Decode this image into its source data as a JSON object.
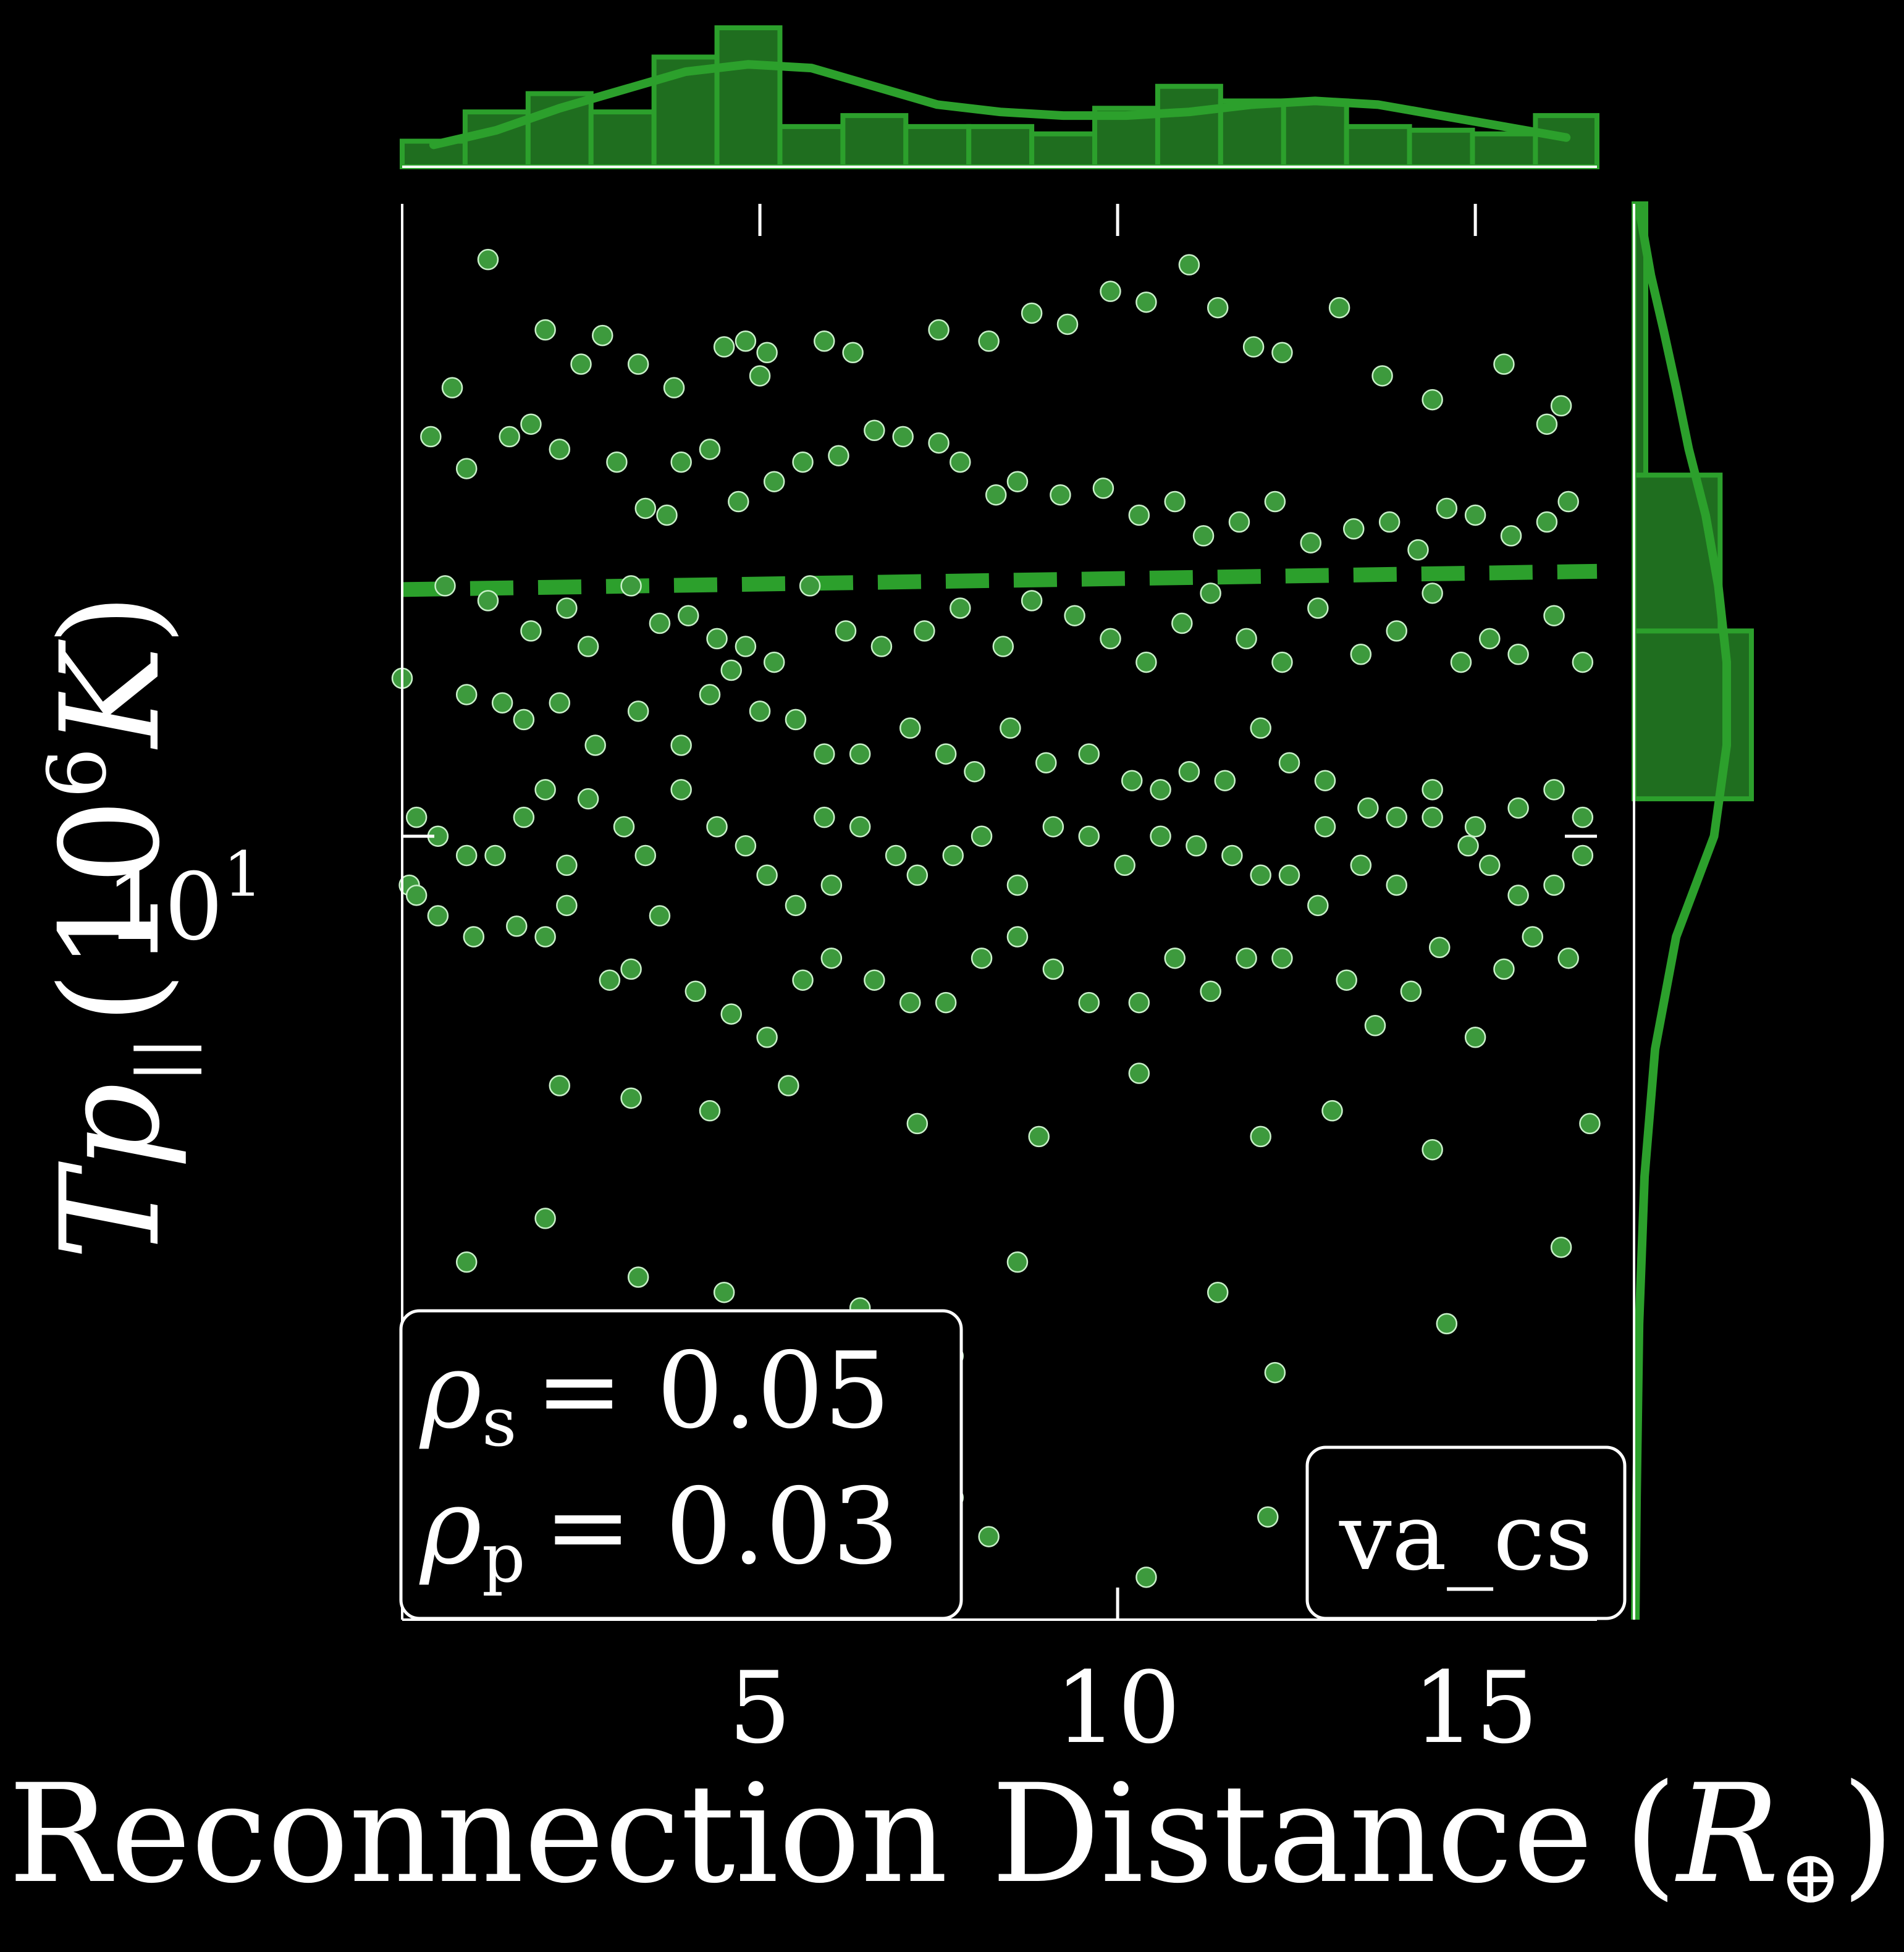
{
  "theme": {
    "background": "#000000",
    "accent": "#2ca02c",
    "bar_fill": "#1f6e1f",
    "point_fill": "#3d9a3d",
    "point_edge": "#c8f0c8",
    "axis_color": "#ffffff"
  },
  "labels": {
    "xlabel": "Reconnection Distance",
    "xlabel_unit_open": "(",
    "xlabel_unit_sym": "R",
    "xlabel_unit_sub": "⊕",
    "xlabel_unit_close": ")",
    "ylabel_sym": "Tp",
    "ylabel_sub": "||",
    "ylabel_paren_open": "(10",
    "ylabel_exp": "6",
    "ylabel_unit": "K",
    "ylabel_paren_close": ")"
  },
  "stats": {
    "rho_s_sym": "ρ",
    "rho_s_sub": "s",
    "rho_s_eq": "= 0.05",
    "rho_p_sym": "ρ",
    "rho_p_sub": "p",
    "rho_p_eq": "= 0.03",
    "tag": "va_cs"
  },
  "chart_data": {
    "type": "scatter",
    "title": "",
    "xlabel": "Reconnection Distance (R⊕)",
    "ylabel": "Tp|| (10^6 K)",
    "x_scale": "linear",
    "y_scale": "log",
    "xlim": [
      0,
      16.7
    ],
    "ylim": [
      4.4,
      19.4
    ],
    "x_ticks": [
      5,
      10,
      15
    ],
    "x_tick_labels": [
      "5",
      "10",
      "15"
    ],
    "y_ticks": [
      10
    ],
    "y_tick_labels": [
      "10",
      "1"
    ],
    "grid": false,
    "annotation_box_position": "bottom-left",
    "tag_box_position": "bottom-right",
    "regression": {
      "x": [
        0,
        16.7
      ],
      "y": [
        12.95,
        13.2
      ]
    },
    "points": [
      [
        0.7,
        16.0
      ],
      [
        1.2,
        18.3
      ],
      [
        2.0,
        17.0
      ],
      [
        2.5,
        16.4
      ],
      [
        2.8,
        16.9
      ],
      [
        3.3,
        16.4
      ],
      [
        3.8,
        16.0
      ],
      [
        4.5,
        16.7
      ],
      [
        4.8,
        16.8
      ],
      [
        5.0,
        16.2
      ],
      [
        5.1,
        16.6
      ],
      [
        5.9,
        16.8
      ],
      [
        6.3,
        16.6
      ],
      [
        7.5,
        17.0
      ],
      [
        8.2,
        16.8
      ],
      [
        8.8,
        17.3
      ],
      [
        9.3,
        17.1
      ],
      [
        9.9,
        17.7
      ],
      [
        10.4,
        17.5
      ],
      [
        11.0,
        18.2
      ],
      [
        11.4,
        17.4
      ],
      [
        11.9,
        16.7
      ],
      [
        12.3,
        16.6
      ],
      [
        13.1,
        17.4
      ],
      [
        13.7,
        16.2
      ],
      [
        14.4,
        15.8
      ],
      [
        15.4,
        16.4
      ],
      [
        16.0,
        15.4
      ],
      [
        16.2,
        15.7
      ],
      [
        0.4,
        15.2
      ],
      [
        0.9,
        14.7
      ],
      [
        1.5,
        15.2
      ],
      [
        1.8,
        15.4
      ],
      [
        2.2,
        15.0
      ],
      [
        3.0,
        14.8
      ],
      [
        3.4,
        14.1
      ],
      [
        3.7,
        14.0
      ],
      [
        3.9,
        14.8
      ],
      [
        4.3,
        15.0
      ],
      [
        4.7,
        14.2
      ],
      [
        5.2,
        14.5
      ],
      [
        5.6,
        14.8
      ],
      [
        6.1,
        14.9
      ],
      [
        6.6,
        15.3
      ],
      [
        7.0,
        15.2
      ],
      [
        7.5,
        15.1
      ],
      [
        7.8,
        14.8
      ],
      [
        8.3,
        14.3
      ],
      [
        8.6,
        14.5
      ],
      [
        9.2,
        14.3
      ],
      [
        9.8,
        14.4
      ],
      [
        10.3,
        14.0
      ],
      [
        10.8,
        14.2
      ],
      [
        11.2,
        13.7
      ],
      [
        11.7,
        13.9
      ],
      [
        12.2,
        14.2
      ],
      [
        12.7,
        13.6
      ],
      [
        13.3,
        13.8
      ],
      [
        13.8,
        13.9
      ],
      [
        14.2,
        13.5
      ],
      [
        14.6,
        14.1
      ],
      [
        15.0,
        14.0
      ],
      [
        15.5,
        13.7
      ],
      [
        16.0,
        13.9
      ],
      [
        16.3,
        14.2
      ],
      [
        0.6,
        13.0
      ],
      [
        1.2,
        12.8
      ],
      [
        1.8,
        12.4
      ],
      [
        2.3,
        12.7
      ],
      [
        2.6,
        12.2
      ],
      [
        3.2,
        13.0
      ],
      [
        3.6,
        12.5
      ],
      [
        4.0,
        12.6
      ],
      [
        4.4,
        12.3
      ],
      [
        4.8,
        12.2
      ],
      [
        5.2,
        12.0
      ],
      [
        5.7,
        13.0
      ],
      [
        6.2,
        12.4
      ],
      [
        6.7,
        12.2
      ],
      [
        7.3,
        12.4
      ],
      [
        7.8,
        12.7
      ],
      [
        8.4,
        12.2
      ],
      [
        8.8,
        12.8
      ],
      [
        9.4,
        12.6
      ],
      [
        9.9,
        12.3
      ],
      [
        10.4,
        12.0
      ],
      [
        10.9,
        12.5
      ],
      [
        11.3,
        12.9
      ],
      [
        11.8,
        12.3
      ],
      [
        12.3,
        12.0
      ],
      [
        12.8,
        12.7
      ],
      [
        13.4,
        12.1
      ],
      [
        13.9,
        12.4
      ],
      [
        14.4,
        12.9
      ],
      [
        14.8,
        12.0
      ],
      [
        15.2,
        12.3
      ],
      [
        15.6,
        12.1
      ],
      [
        16.1,
        12.6
      ],
      [
        16.5,
        12.0
      ],
      [
        0.0,
        11.8
      ],
      [
        0.9,
        11.6
      ],
      [
        1.4,
        11.5
      ],
      [
        1.7,
        11.3
      ],
      [
        2.2,
        11.5
      ],
      [
        2.7,
        11.0
      ],
      [
        3.3,
        11.4
      ],
      [
        3.9,
        11.0
      ],
      [
        4.3,
        11.6
      ],
      [
        4.6,
        11.9
      ],
      [
        5.0,
        11.4
      ],
      [
        5.5,
        11.3
      ],
      [
        5.9,
        10.9
      ],
      [
        6.4,
        10.9
      ],
      [
        7.1,
        11.2
      ],
      [
        7.6,
        10.9
      ],
      [
        8.0,
        10.7
      ],
      [
        8.5,
        11.2
      ],
      [
        9.0,
        10.8
      ],
      [
        9.6,
        10.9
      ],
      [
        10.2,
        10.6
      ],
      [
        10.6,
        10.5
      ],
      [
        11.0,
        10.7
      ],
      [
        11.5,
        10.6
      ],
      [
        12.0,
        11.2
      ],
      [
        12.4,
        10.8
      ],
      [
        12.9,
        10.6
      ],
      [
        13.5,
        10.3
      ],
      [
        13.9,
        10.2
      ],
      [
        14.4,
        10.5
      ],
      [
        15.0,
        10.1
      ],
      [
        15.6,
        10.3
      ],
      [
        16.1,
        10.5
      ],
      [
        16.5,
        10.2
      ],
      [
        0.2,
        10.2
      ],
      [
        0.5,
        10.0
      ],
      [
        0.9,
        9.8
      ],
      [
        1.3,
        9.8
      ],
      [
        1.7,
        10.2
      ],
      [
        2.0,
        10.5
      ],
      [
        2.3,
        9.7
      ],
      [
        2.6,
        10.4
      ],
      [
        3.1,
        10.1
      ],
      [
        3.4,
        9.8
      ],
      [
        3.9,
        10.5
      ],
      [
        4.4,
        10.1
      ],
      [
        4.8,
        9.9
      ],
      [
        5.1,
        9.6
      ],
      [
        5.5,
        9.3
      ],
      [
        5.9,
        10.2
      ],
      [
        6.0,
        9.5
      ],
      [
        6.4,
        10.1
      ],
      [
        6.9,
        9.8
      ],
      [
        7.2,
        9.6
      ],
      [
        7.7,
        9.8
      ],
      [
        8.1,
        10.0
      ],
      [
        8.6,
        9.5
      ],
      [
        9.1,
        10.1
      ],
      [
        9.6,
        10.0
      ],
      [
        10.1,
        9.7
      ],
      [
        10.6,
        10.0
      ],
      [
        11.1,
        9.9
      ],
      [
        11.6,
        9.8
      ],
      [
        12.0,
        9.6
      ],
      [
        12.4,
        9.6
      ],
      [
        12.9,
        10.1
      ],
      [
        13.4,
        9.7
      ],
      [
        13.9,
        9.5
      ],
      [
        14.4,
        10.2
      ],
      [
        14.9,
        9.9
      ],
      [
        15.2,
        9.7
      ],
      [
        15.6,
        9.4
      ],
      [
        16.1,
        9.5
      ],
      [
        16.5,
        9.8
      ],
      [
        0.1,
        9.5
      ],
      [
        0.2,
        9.4
      ],
      [
        0.5,
        9.2
      ],
      [
        1.0,
        9.0
      ],
      [
        1.6,
        9.1
      ],
      [
        2.0,
        9.0
      ],
      [
        2.3,
        9.3
      ],
      [
        2.9,
        8.6
      ],
      [
        3.2,
        8.7
      ],
      [
        3.6,
        9.2
      ],
      [
        4.1,
        8.5
      ],
      [
        4.6,
        8.3
      ],
      [
        5.1,
        8.1
      ],
      [
        5.6,
        8.6
      ],
      [
        6.0,
        8.8
      ],
      [
        6.6,
        8.6
      ],
      [
        7.1,
        8.4
      ],
      [
        7.6,
        8.4
      ],
      [
        8.1,
        8.8
      ],
      [
        8.6,
        9.0
      ],
      [
        9.1,
        8.7
      ],
      [
        9.6,
        8.4
      ],
      [
        10.3,
        8.4
      ],
      [
        10.8,
        8.8
      ],
      [
        11.3,
        8.5
      ],
      [
        11.8,
        8.8
      ],
      [
        12.3,
        8.8
      ],
      [
        12.8,
        9.3
      ],
      [
        13.2,
        8.6
      ],
      [
        13.6,
        8.2
      ],
      [
        14.1,
        8.5
      ],
      [
        14.5,
        8.9
      ],
      [
        15.0,
        8.1
      ],
      [
        15.4,
        8.7
      ],
      [
        15.8,
        9.0
      ],
      [
        16.3,
        8.8
      ],
      [
        2.2,
        7.7
      ],
      [
        3.2,
        7.6
      ],
      [
        4.3,
        7.5
      ],
      [
        5.4,
        7.7
      ],
      [
        7.2,
        7.4
      ],
      [
        8.9,
        7.3
      ],
      [
        10.3,
        7.8
      ],
      [
        12.0,
        7.3
      ],
      [
        13.0,
        7.5
      ],
      [
        14.4,
        7.2
      ],
      [
        16.6,
        7.4
      ],
      [
        0.9,
        6.4
      ],
      [
        2.0,
        6.7
      ],
      [
        3.3,
        6.3
      ],
      [
        4.5,
        6.2
      ],
      [
        5.2,
        5.9
      ],
      [
        6.4,
        6.1
      ],
      [
        7.7,
        5.8
      ],
      [
        8.6,
        6.4
      ],
      [
        11.4,
        6.2
      ],
      [
        12.2,
        5.7
      ],
      [
        14.6,
        6.0
      ],
      [
        16.2,
        6.5
      ],
      [
        2.5,
        5.2
      ],
      [
        4.4,
        5.5
      ],
      [
        6.9,
        5.4
      ],
      [
        6.9,
        5.3
      ],
      [
        7.7,
        5.0
      ],
      [
        8.2,
        4.8
      ],
      [
        10.4,
        4.6
      ],
      [
        12.1,
        4.9
      ]
    ],
    "top_histogram": {
      "bin_edges": [
        0,
        0.88,
        1.76,
        2.64,
        3.52,
        4.4,
        5.28,
        6.16,
        7.04,
        7.92,
        8.8,
        9.68,
        10.56,
        11.44,
        12.32,
        13.2,
        14.08,
        14.96,
        15.84,
        16.7
      ],
      "counts": [
        7,
        15,
        20,
        15,
        30,
        38,
        11,
        14,
        11,
        11,
        9,
        16,
        22,
        18,
        18,
        11,
        10,
        9,
        14
      ],
      "kde": [
        6,
        10,
        16,
        21,
        26,
        28,
        27,
        22,
        17,
        15,
        14,
        14,
        15,
        17,
        18,
        17,
        14,
        11,
        8
      ]
    },
    "right_histogram": {
      "bin_edges": [
        10.4,
        12.4,
        14.6,
        19.4
      ],
      "counts": [
        30,
        22,
        3
      ],
      "kde_y": [
        4.4,
        5.0,
        6.0,
        7.0,
        8.0,
        9.0,
        10.0,
        11.0,
        12.0,
        13.0,
        14.0,
        15.0,
        16.0,
        17.0,
        18.0,
        19.4
      ],
      "kde": [
        0.3,
        0.6,
        1.2,
        2.5,
        5.0,
        10.0,
        19.0,
        22.0,
        22.0,
        20.0,
        17.0,
        13.0,
        10.0,
        7.0,
        4.0,
        1.0
      ]
    }
  }
}
